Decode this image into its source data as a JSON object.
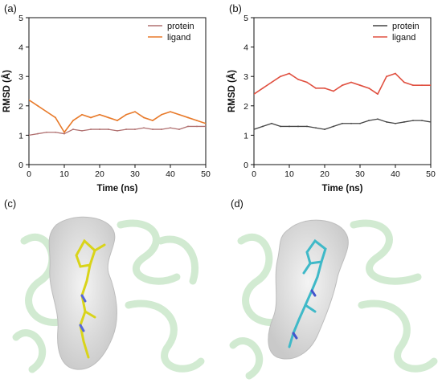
{
  "panels": {
    "a": "(a)",
    "b": "(b)",
    "c": "(c)",
    "d": "(d)"
  },
  "colors": {
    "protein_a": "#b07070",
    "ligand_a": "#e87a2a",
    "protein_b": "#444444",
    "ligand_b": "#e05040",
    "surface": "#e2e2e2",
    "cartoon": "#9bd29b",
    "ligand_c": "#d9d41a",
    "ligand_d": "#3fb9c8"
  },
  "chart_data": [
    {
      "id": "a",
      "type": "line",
      "xlabel": "Time (ns)",
      "ylabel": "RMSD (Å)",
      "xlim": [
        0,
        50
      ],
      "ylim": [
        0,
        5
      ],
      "xticks": [
        0,
        10,
        20,
        30,
        40,
        50
      ],
      "yticks": [
        0,
        1,
        2,
        3,
        4,
        5
      ],
      "legend_position": "top-right",
      "series": [
        {
          "name": "protein",
          "x": [
            0,
            2.5,
            5,
            7.5,
            10,
            12.5,
            15,
            17.5,
            20,
            22.5,
            25,
            27.5,
            30,
            32.5,
            35,
            37.5,
            40,
            42.5,
            45,
            47.5,
            50
          ],
          "values": [
            1.0,
            1.05,
            1.1,
            1.1,
            1.05,
            1.2,
            1.15,
            1.2,
            1.2,
            1.2,
            1.15,
            1.2,
            1.2,
            1.25,
            1.2,
            1.2,
            1.25,
            1.2,
            1.3,
            1.3,
            1.3
          ]
        },
        {
          "name": "ligand",
          "x": [
            0,
            2.5,
            5,
            7.5,
            10,
            12.5,
            15,
            17.5,
            20,
            22.5,
            25,
            27.5,
            30,
            32.5,
            35,
            37.5,
            40,
            42.5,
            45,
            47.5,
            50
          ],
          "values": [
            2.2,
            2.0,
            1.8,
            1.6,
            1.1,
            1.5,
            1.7,
            1.6,
            1.7,
            1.6,
            1.5,
            1.7,
            1.8,
            1.6,
            1.5,
            1.7,
            1.8,
            1.7,
            1.6,
            1.5,
            1.4
          ]
        }
      ]
    },
    {
      "id": "b",
      "type": "line",
      "xlabel": "Time (ns)",
      "ylabel": "RMSD (Å)",
      "xlim": [
        0,
        50
      ],
      "ylim": [
        0,
        5
      ],
      "xticks": [
        0,
        10,
        20,
        30,
        40,
        50
      ],
      "yticks": [
        0,
        1,
        2,
        3,
        4,
        5
      ],
      "legend_position": "top-right",
      "series": [
        {
          "name": "protein",
          "x": [
            0,
            2.5,
            5,
            7.5,
            10,
            12.5,
            15,
            17.5,
            20,
            22.5,
            25,
            27.5,
            30,
            32.5,
            35,
            37.5,
            40,
            42.5,
            45,
            47.5,
            50
          ],
          "values": [
            1.2,
            1.3,
            1.4,
            1.3,
            1.3,
            1.3,
            1.3,
            1.25,
            1.2,
            1.3,
            1.4,
            1.4,
            1.4,
            1.5,
            1.55,
            1.45,
            1.4,
            1.45,
            1.5,
            1.5,
            1.45
          ]
        },
        {
          "name": "ligand",
          "x": [
            0,
            2.5,
            5,
            7.5,
            10,
            12.5,
            15,
            17.5,
            20,
            22.5,
            25,
            27.5,
            30,
            32.5,
            35,
            37.5,
            40,
            42.5,
            45,
            47.5,
            50
          ],
          "values": [
            2.4,
            2.6,
            2.8,
            3.0,
            3.1,
            2.9,
            2.8,
            2.6,
            2.6,
            2.5,
            2.7,
            2.8,
            2.7,
            2.6,
            2.4,
            3.0,
            3.1,
            2.8,
            2.7,
            2.7,
            2.7
          ]
        }
      ]
    }
  ]
}
